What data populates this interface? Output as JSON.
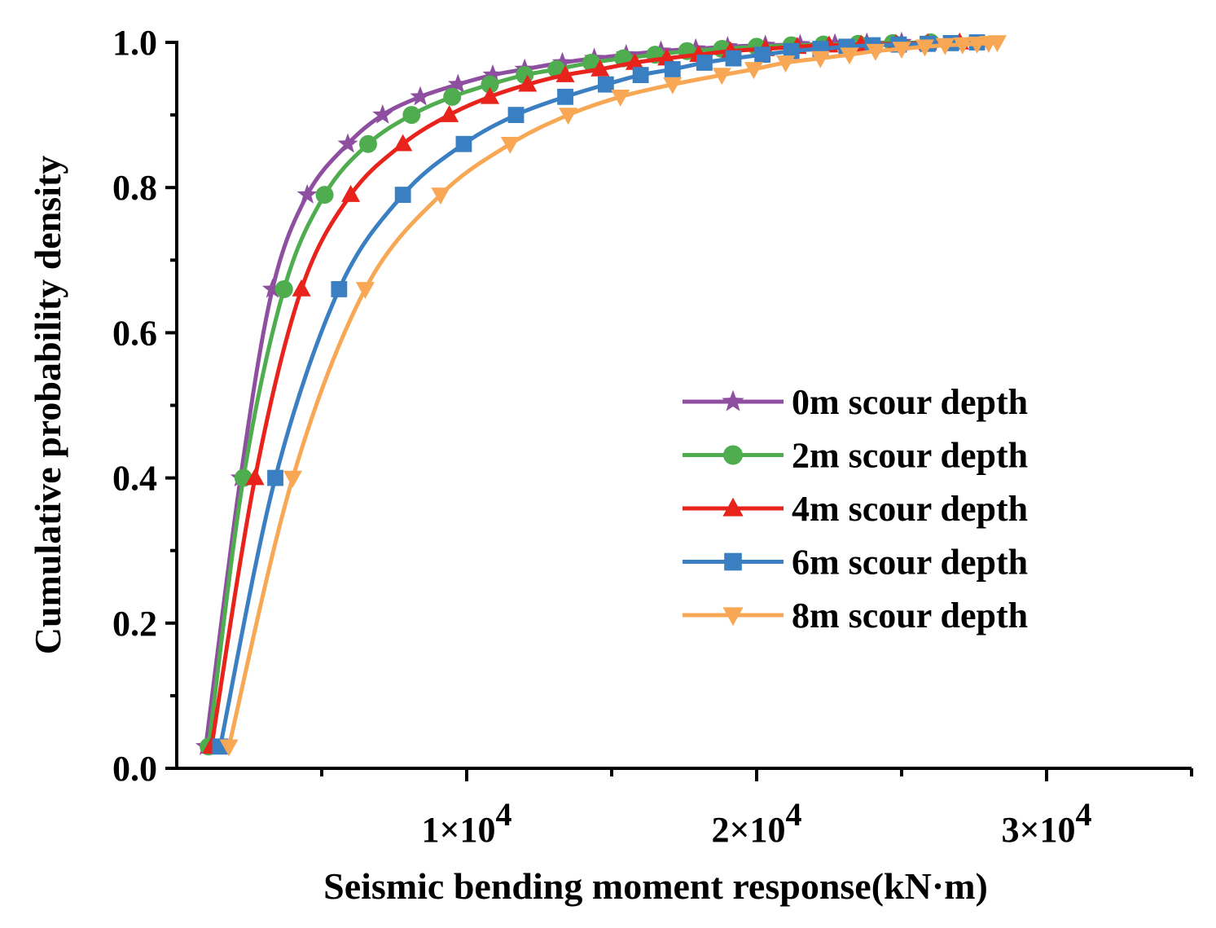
{
  "chart_data": {
    "type": "line",
    "title": "",
    "xlabel": "Seismic bending moment response(kN·m)",
    "ylabel": "Cumulative probability density",
    "xlim": [
      0,
      35000
    ],
    "ylim": [
      0,
      1.0
    ],
    "x_ticks": [
      {
        "value": 10000,
        "mantissa": "1×10",
        "exp": "4"
      },
      {
        "value": 20000,
        "mantissa": "2×10",
        "exp": "4"
      },
      {
        "value": 30000,
        "mantissa": "3×10",
        "exp": "4"
      }
    ],
    "y_ticks": [
      {
        "value": 0.0,
        "label": "0.0"
      },
      {
        "value": 0.2,
        "label": "0.2"
      },
      {
        "value": 0.4,
        "label": "0.4"
      },
      {
        "value": 0.6,
        "label": "0.6"
      },
      {
        "value": 0.8,
        "label": "0.8"
      },
      {
        "value": 1.0,
        "label": "1.0"
      }
    ],
    "legend_position": "right-middle",
    "series": [
      {
        "name": "0m scour depth",
        "color": "#8e4fa0",
        "marker": "star",
        "x": [
          1000,
          2200,
          3300,
          4500,
          5900,
          7100,
          8400,
          9700,
          10900,
          12000,
          13300,
          14400,
          15500,
          16700,
          17900,
          19000,
          20300,
          21500,
          22700,
          23800,
          25000
        ],
        "y": [
          0.03,
          0.4,
          0.66,
          0.79,
          0.86,
          0.9,
          0.925,
          0.942,
          0.955,
          0.963,
          0.972,
          0.978,
          0.983,
          0.988,
          0.991,
          0.994,
          0.996,
          0.997,
          0.998,
          0.999,
          1.0
        ]
      },
      {
        "name": "2m scour depth",
        "color": "#4fad4f",
        "marker": "circle",
        "x": [
          1100,
          2300,
          3700,
          5100,
          6600,
          8100,
          9500,
          10800,
          12000,
          13100,
          14300,
          15400,
          16500,
          17600,
          18800,
          20000,
          21200,
          22300,
          23500,
          24700,
          26000
        ],
        "y": [
          0.03,
          0.4,
          0.66,
          0.79,
          0.86,
          0.9,
          0.925,
          0.942,
          0.955,
          0.963,
          0.972,
          0.978,
          0.983,
          0.988,
          0.991,
          0.994,
          0.996,
          0.997,
          0.998,
          0.999,
          1.0
        ]
      },
      {
        "name": "4m scour depth",
        "color": "#e8231c",
        "marker": "triangle-up",
        "x": [
          1200,
          2700,
          4300,
          6000,
          7800,
          9400,
          10800,
          12100,
          13400,
          14600,
          15800,
          16900,
          18000,
          19100,
          20300,
          21400,
          22500,
          23600,
          24800,
          25900,
          27000
        ],
        "y": [
          0.03,
          0.4,
          0.66,
          0.79,
          0.86,
          0.9,
          0.925,
          0.942,
          0.955,
          0.963,
          0.972,
          0.978,
          0.983,
          0.988,
          0.991,
          0.994,
          0.996,
          0.997,
          0.998,
          0.999,
          1.0
        ]
      },
      {
        "name": "6m scour depth",
        "color": "#3a7fc1",
        "marker": "square",
        "x": [
          1500,
          3400,
          5600,
          7800,
          9900,
          11700,
          13400,
          14800,
          16000,
          17100,
          18200,
          19200,
          20200,
          21200,
          22200,
          23100,
          24000,
          24900,
          25900,
          26700,
          27600
        ],
        "y": [
          0.03,
          0.4,
          0.66,
          0.79,
          0.86,
          0.9,
          0.925,
          0.942,
          0.955,
          0.963,
          0.972,
          0.978,
          0.983,
          0.988,
          0.991,
          0.994,
          0.996,
          0.997,
          0.998,
          0.999,
          1.0
        ]
      },
      {
        "name": "8m scour depth",
        "color": "#f8a754",
        "marker": "triangle-down",
        "x": [
          1800,
          4000,
          6500,
          9100,
          11500,
          13500,
          15300,
          17100,
          18800,
          19900,
          21000,
          22200,
          23200,
          24100,
          25000,
          25800,
          26500,
          27100,
          27600,
          28000,
          28300
        ],
        "y": [
          0.03,
          0.4,
          0.66,
          0.79,
          0.86,
          0.9,
          0.925,
          0.942,
          0.955,
          0.963,
          0.972,
          0.978,
          0.983,
          0.988,
          0.991,
          0.994,
          0.996,
          0.997,
          0.998,
          0.999,
          1.0
        ]
      }
    ]
  }
}
